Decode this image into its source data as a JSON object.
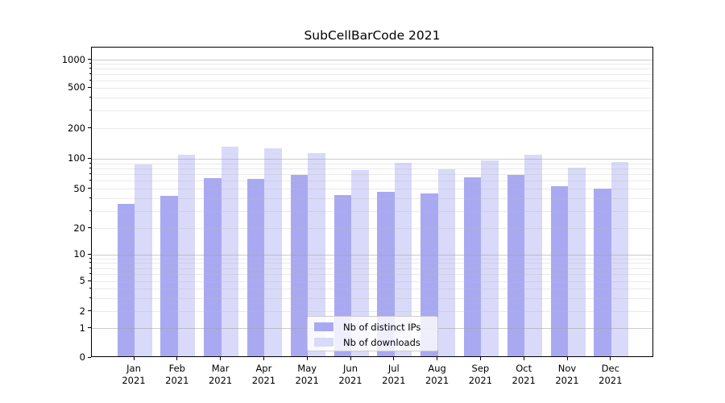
{
  "title": "SubCellBarCode 2021",
  "legend": {
    "items": [
      {
        "label": "Nb of distinct IPs",
        "color": "#a9a9f2"
      },
      {
        "label": "Nb of downloads",
        "color": "#d9d9f9"
      }
    ]
  },
  "y_axis": {
    "tick_labels": [
      "0",
      "1",
      "2",
      "5",
      "10",
      "20",
      "50",
      "100",
      "200",
      "500",
      "1000"
    ]
  },
  "x_axis": {
    "tick_labels": [
      [
        "Jan",
        "2021"
      ],
      [
        "Feb",
        "2021"
      ],
      [
        "Mar",
        "2021"
      ],
      [
        "Apr",
        "2021"
      ],
      [
        "May",
        "2021"
      ],
      [
        "Jun",
        "2021"
      ],
      [
        "Jul",
        "2021"
      ],
      [
        "Aug",
        "2021"
      ],
      [
        "Sep",
        "2021"
      ],
      [
        "Oct",
        "2021"
      ],
      [
        "Nov",
        "2021"
      ],
      [
        "Dec",
        "2021"
      ]
    ]
  },
  "chart_data": {
    "type": "bar",
    "title": "SubCellBarCode 2021",
    "categories": [
      "Jan 2021",
      "Feb 2021",
      "Mar 2021",
      "Apr 2021",
      "May 2021",
      "Jun 2021",
      "Jul 2021",
      "Aug 2021",
      "Sep 2021",
      "Oct 2021",
      "Nov 2021",
      "Dec 2021"
    ],
    "series": [
      {
        "name": "Nb of distinct IPs",
        "color": "#a9a9f2",
        "values": [
          34,
          41,
          62,
          61,
          67,
          42,
          45,
          44,
          63,
          67,
          52,
          49
        ]
      },
      {
        "name": "Nb of downloads",
        "color": "#d9d9f9",
        "values": [
          85,
          106,
          128,
          124,
          110,
          75,
          88,
          76,
          94,
          107,
          79,
          90
        ]
      }
    ],
    "xlabel": "",
    "ylabel": "",
    "yscale": "symlog",
    "yticks": [
      0,
      1,
      2,
      5,
      10,
      20,
      50,
      100,
      200,
      500,
      1000
    ],
    "minor_gridlines": [
      2,
      3,
      4,
      5,
      6,
      7,
      8,
      9,
      20,
      30,
      40,
      50,
      60,
      70,
      80,
      90,
      200,
      300,
      400,
      500,
      600,
      700,
      800,
      900
    ],
    "major_gridlines": [
      1,
      10,
      100,
      1000
    ],
    "ylim": [
      0,
      1400
    ],
    "grid": true,
    "legend_position": "lower center"
  }
}
